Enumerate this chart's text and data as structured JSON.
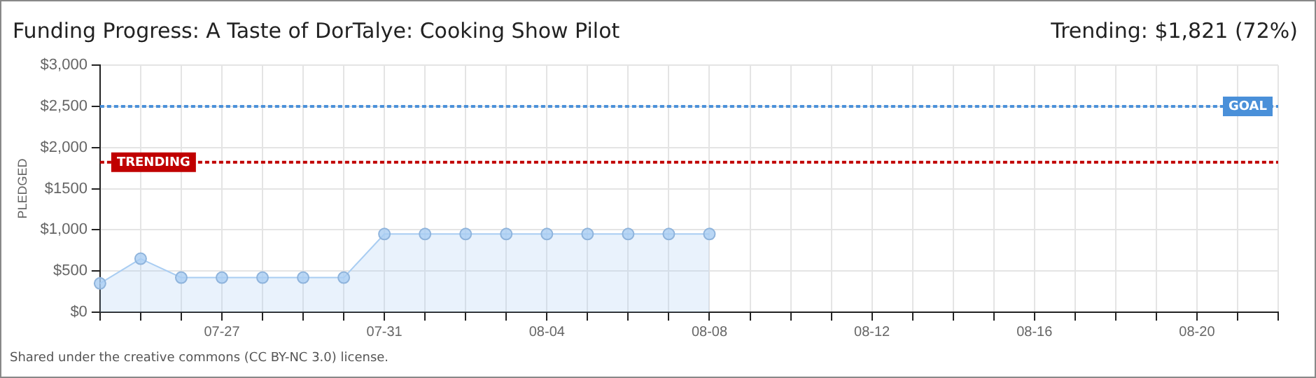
{
  "chart_data": {
    "type": "area",
    "title": "Funding Progress: A Taste of DorTalye: Cooking Show Pilot",
    "subtitle": "Trending: $1,821 (72%)",
    "ylabel": "PLEDGED",
    "categories": [
      null,
      null,
      null,
      "07-27",
      null,
      null,
      null,
      "07-31",
      null,
      null,
      null,
      "08-04",
      null,
      null,
      null,
      "08-08",
      null,
      null,
      null,
      "08-12",
      null,
      null,
      null,
      "08-16",
      null,
      null,
      null,
      "08-20",
      null,
      null
    ],
    "series": [
      {
        "color": "#a9cdf2",
        "values": [
          350,
          650,
          420,
          420,
          420,
          420,
          420,
          950,
          950,
          950,
          950,
          950,
          950,
          950,
          950,
          950,
          null,
          null,
          null,
          null,
          null,
          null,
          null,
          null,
          null,
          null,
          null,
          null,
          null,
          null
        ]
      }
    ],
    "ylim": [
      0,
      3000
    ],
    "yticks": [
      {
        "value": 0,
        "label": "$0"
      },
      {
        "value": 500,
        "label": "$500"
      },
      {
        "value": 1000,
        "label": "$1,000"
      },
      {
        "value": 1500,
        "label": "$1500"
      },
      {
        "value": 2000,
        "label": "$2,000"
      },
      {
        "value": 2500,
        "label": "$2,500"
      },
      {
        "value": 3000,
        "label": "$3,000"
      }
    ],
    "ref_lines": [
      {
        "axis": "y",
        "value": 2500,
        "label": "GOAL",
        "color": "#4a90d9",
        "line_style": "dotted"
      },
      {
        "axis": "y",
        "value": 1821,
        "label": "TRENDING",
        "color": "#c00000",
        "line_style": "dotted"
      }
    ],
    "grid": true,
    "marker": "circle",
    "legend": false,
    "annotations": [
      "Shared under the creative commons (CC BY-NC 3.0) license."
    ]
  }
}
